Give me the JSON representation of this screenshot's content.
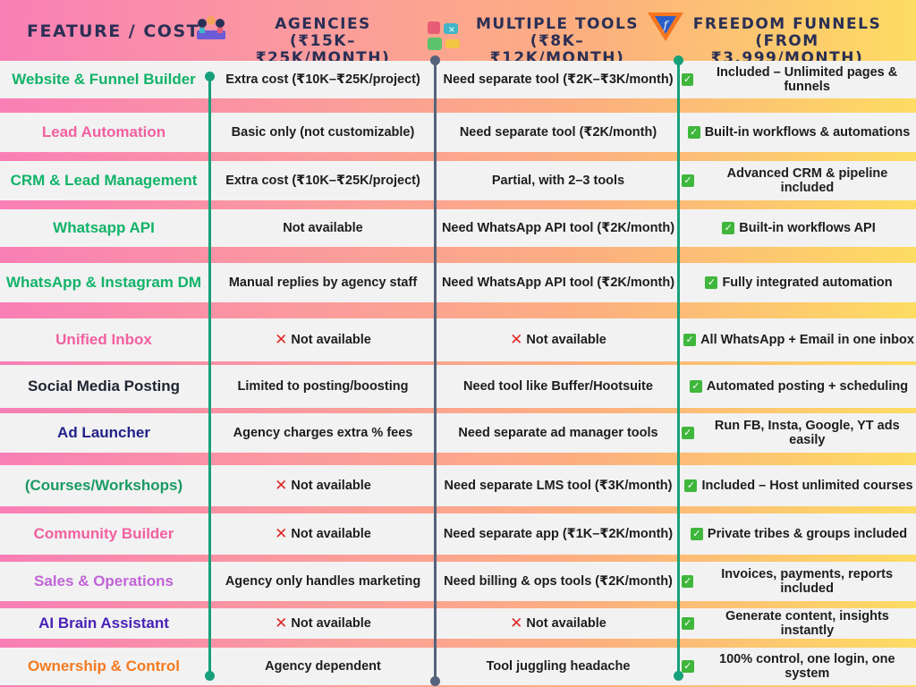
{
  "header": {
    "feature": "FEATURE / COST",
    "agencies": {
      "title": "AGENCIES",
      "sub": "(₹15K–₹25K/MONTH)"
    },
    "tools": {
      "title": "MULTIPLE TOOLS",
      "sub": "(₹8K–₹12K/MONTH)"
    },
    "ff": {
      "title": "FREEDOM FUNNELS",
      "sub": "(FROM ₹3,999/MONTH)"
    }
  },
  "rows": [
    {
      "feature": "Website & Funnel Builder",
      "color": "#12b368",
      "agency": "Extra cost (₹10K–₹25K/project)",
      "tools": "Need separate tool (₹2K–₹3K/month)",
      "ff": "Included – Unlimited pages & funnels"
    },
    {
      "feature": "Lead Automation",
      "color": "#f2609f",
      "agency": "Basic only (not customizable)",
      "tools": "Need separate tool (₹2K/month)",
      "ff": "Built-in workflows & automations"
    },
    {
      "feature": "CRM & Lead Management",
      "color": "#12b368",
      "agency": "Extra cost (₹10K–₹25K/project)",
      "tools": "Partial, with 2–3 tools",
      "ff": "Advanced CRM & pipeline included"
    },
    {
      "feature": "Whatsapp API",
      "color": "#12b368",
      "agency": "Not available",
      "tools": "Need WhatsApp API tool (₹2K/month)",
      "ff": "Built-in workflows API"
    },
    {
      "feature": "WhatsApp & Instagram DM",
      "color": "#12b368",
      "agency": "Manual replies by agency staff",
      "tools": "Need WhatsApp API tool (₹2K/month)",
      "ff": "Fully integrated automation"
    },
    {
      "feature": "Unified Inbox",
      "color": "#f2609f",
      "agency": "Not available",
      "tools": "Not available",
      "ff": "All WhatsApp + Email in one inbox"
    },
    {
      "feature": "Social Media Posting",
      "color": "#1f2430",
      "agency": "Limited to posting/boosting",
      "tools": "Need tool like Buffer/Hootsuite",
      "ff": "Automated posting + scheduling"
    },
    {
      "feature": "Ad Launcher",
      "color": "#22228a",
      "agency": "Agency charges extra % fees",
      "tools": "Need separate ad manager tools",
      "ff": "Run FB, Insta, Google, YT ads easily"
    },
    {
      "feature": "(Courses/Workshops)",
      "color": "#1a9a63",
      "agency": "Not available",
      "tools": "Need separate LMS tool (₹3K/month)",
      "ff": "Included – Host unlimited courses"
    },
    {
      "feature": "Community Builder",
      "color": "#f2609f",
      "agency": "Not available",
      "tools": "Need separate app (₹1K–₹2K/month)",
      "ff": "Private tribes & groups included"
    },
    {
      "feature": "Sales & Operations",
      "color": "#c065d6",
      "agency": "Agency only handles marketing",
      "tools": "Need billing & ops tools (₹2K/month)",
      "ff": "Invoices, payments, reports included"
    },
    {
      "feature": "AI Brain Assistant",
      "color": "#4a22b6",
      "agency": "Not available",
      "tools": "Not available",
      "ff": "Generate content, insights instantly"
    },
    {
      "feature": "Ownership & Control",
      "color": "#f57a1f",
      "agency": "Agency dependent",
      "tools": "Tool juggling headache",
      "ff": "100% control, one login, one system"
    }
  ]
}
